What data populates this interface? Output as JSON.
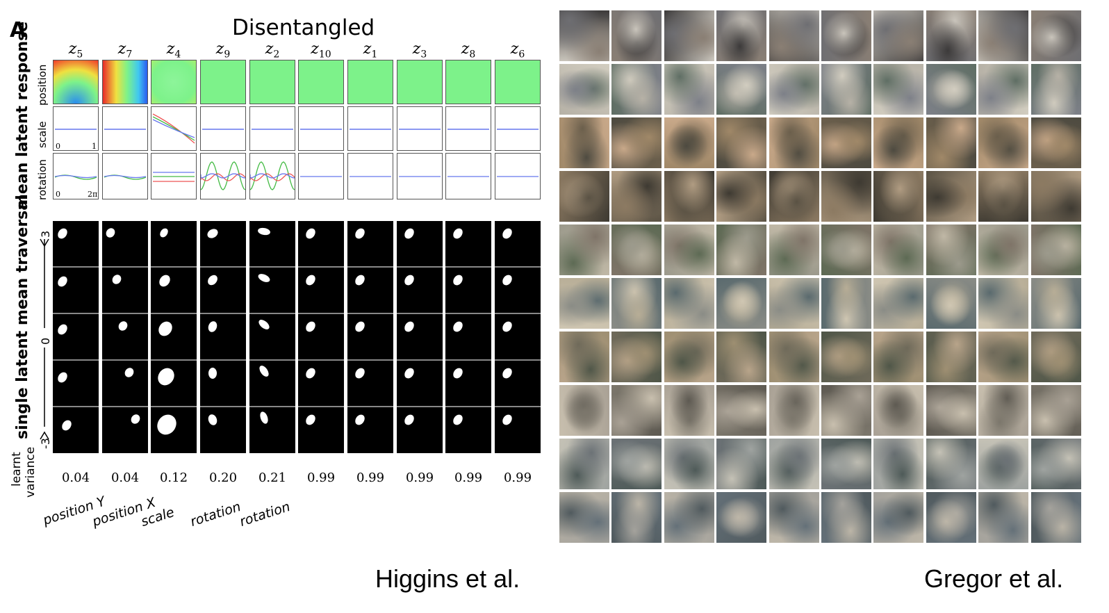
{
  "panel_letter": "A",
  "title": "Disentangled",
  "latents": [
    {
      "name": "z",
      "sub": "5",
      "variance": "0.04",
      "factor": "position Y"
    },
    {
      "name": "z",
      "sub": "7",
      "variance": "0.04",
      "factor": "position X"
    },
    {
      "name": "z",
      "sub": "4",
      "variance": "0.12",
      "factor": "scale"
    },
    {
      "name": "z",
      "sub": "9",
      "variance": "0.20",
      "factor": "rotation"
    },
    {
      "name": "z",
      "sub": "2",
      "variance": "0.21",
      "factor": "rotation"
    },
    {
      "name": "z",
      "sub": "10",
      "variance": "0.99",
      "factor": ""
    },
    {
      "name": "z",
      "sub": "1",
      "variance": "0.99",
      "factor": ""
    },
    {
      "name": "z",
      "sub": "3",
      "variance": "0.99",
      "factor": ""
    },
    {
      "name": "z",
      "sub": "8",
      "variance": "0.99",
      "factor": ""
    },
    {
      "name": "z",
      "sub": "6",
      "variance": "0.99",
      "factor": ""
    }
  ],
  "section_labels": {
    "mean_latent_response": "mean latent response",
    "traversal": "single latent mean traversal",
    "learnt_variance_line1": "learnt",
    "learnt_variance_line2": "variance"
  },
  "row_labels": {
    "position": "position",
    "scale": "scale",
    "rotation": "rotation"
  },
  "scale_axis": {
    "min": "0",
    "max": "1"
  },
  "rotation_axis": {
    "min": "0",
    "max": "2π"
  },
  "traversal_axis": {
    "top": "3",
    "mid": "0",
    "bottom": "-3"
  },
  "credits": {
    "left": "Higgins et al.",
    "right": "Gregor et al."
  },
  "colors": {
    "position_bg": "#7df28a",
    "series_blue": "#6677ee",
    "series_red": "#ee5555",
    "series_green": "#44bb44"
  }
}
